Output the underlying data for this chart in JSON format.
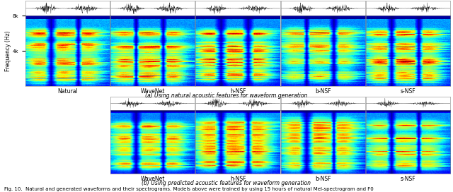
{
  "fig_width": 6.4,
  "fig_height": 2.72,
  "dpi": 100,
  "bg_color": "#ffffff",
  "row_a_labels": [
    "Natural",
    "WaveNet",
    "h-NSF",
    "b-NSF",
    "s-NSF"
  ],
  "row_b_labels": [
    "WaveNet",
    "h-NSF",
    "b-NSF",
    "s-NSF"
  ],
  "row_a_caption": "(a) Using natural acoustic features for waveform generation",
  "row_b_caption": "(b) Using predicted acoustic features for waveform generation",
  "fig_caption": "Fig. 10.  Natural and generated waveforms and their spectrograms. Models above were trained by using 15 hours of natural Mel-spectrogram and F0",
  "ylabel": "Frequency (Hz)",
  "yticks": [
    4000,
    8000
  ],
  "ytick_labels": [
    "4k",
    "8k"
  ],
  "spectrogram_cmap": "jet",
  "waveform_color": "#1a1a1a",
  "border_color": "#888888",
  "row_a_ncols": 5,
  "row_b_ncols": 4,
  "label_fontsize": 5.5,
  "caption_fontsize": 5.5,
  "fig_caption_fontsize": 5.0,
  "ylabel_fontsize": 5.5,
  "ytick_fontsize": 5.0
}
